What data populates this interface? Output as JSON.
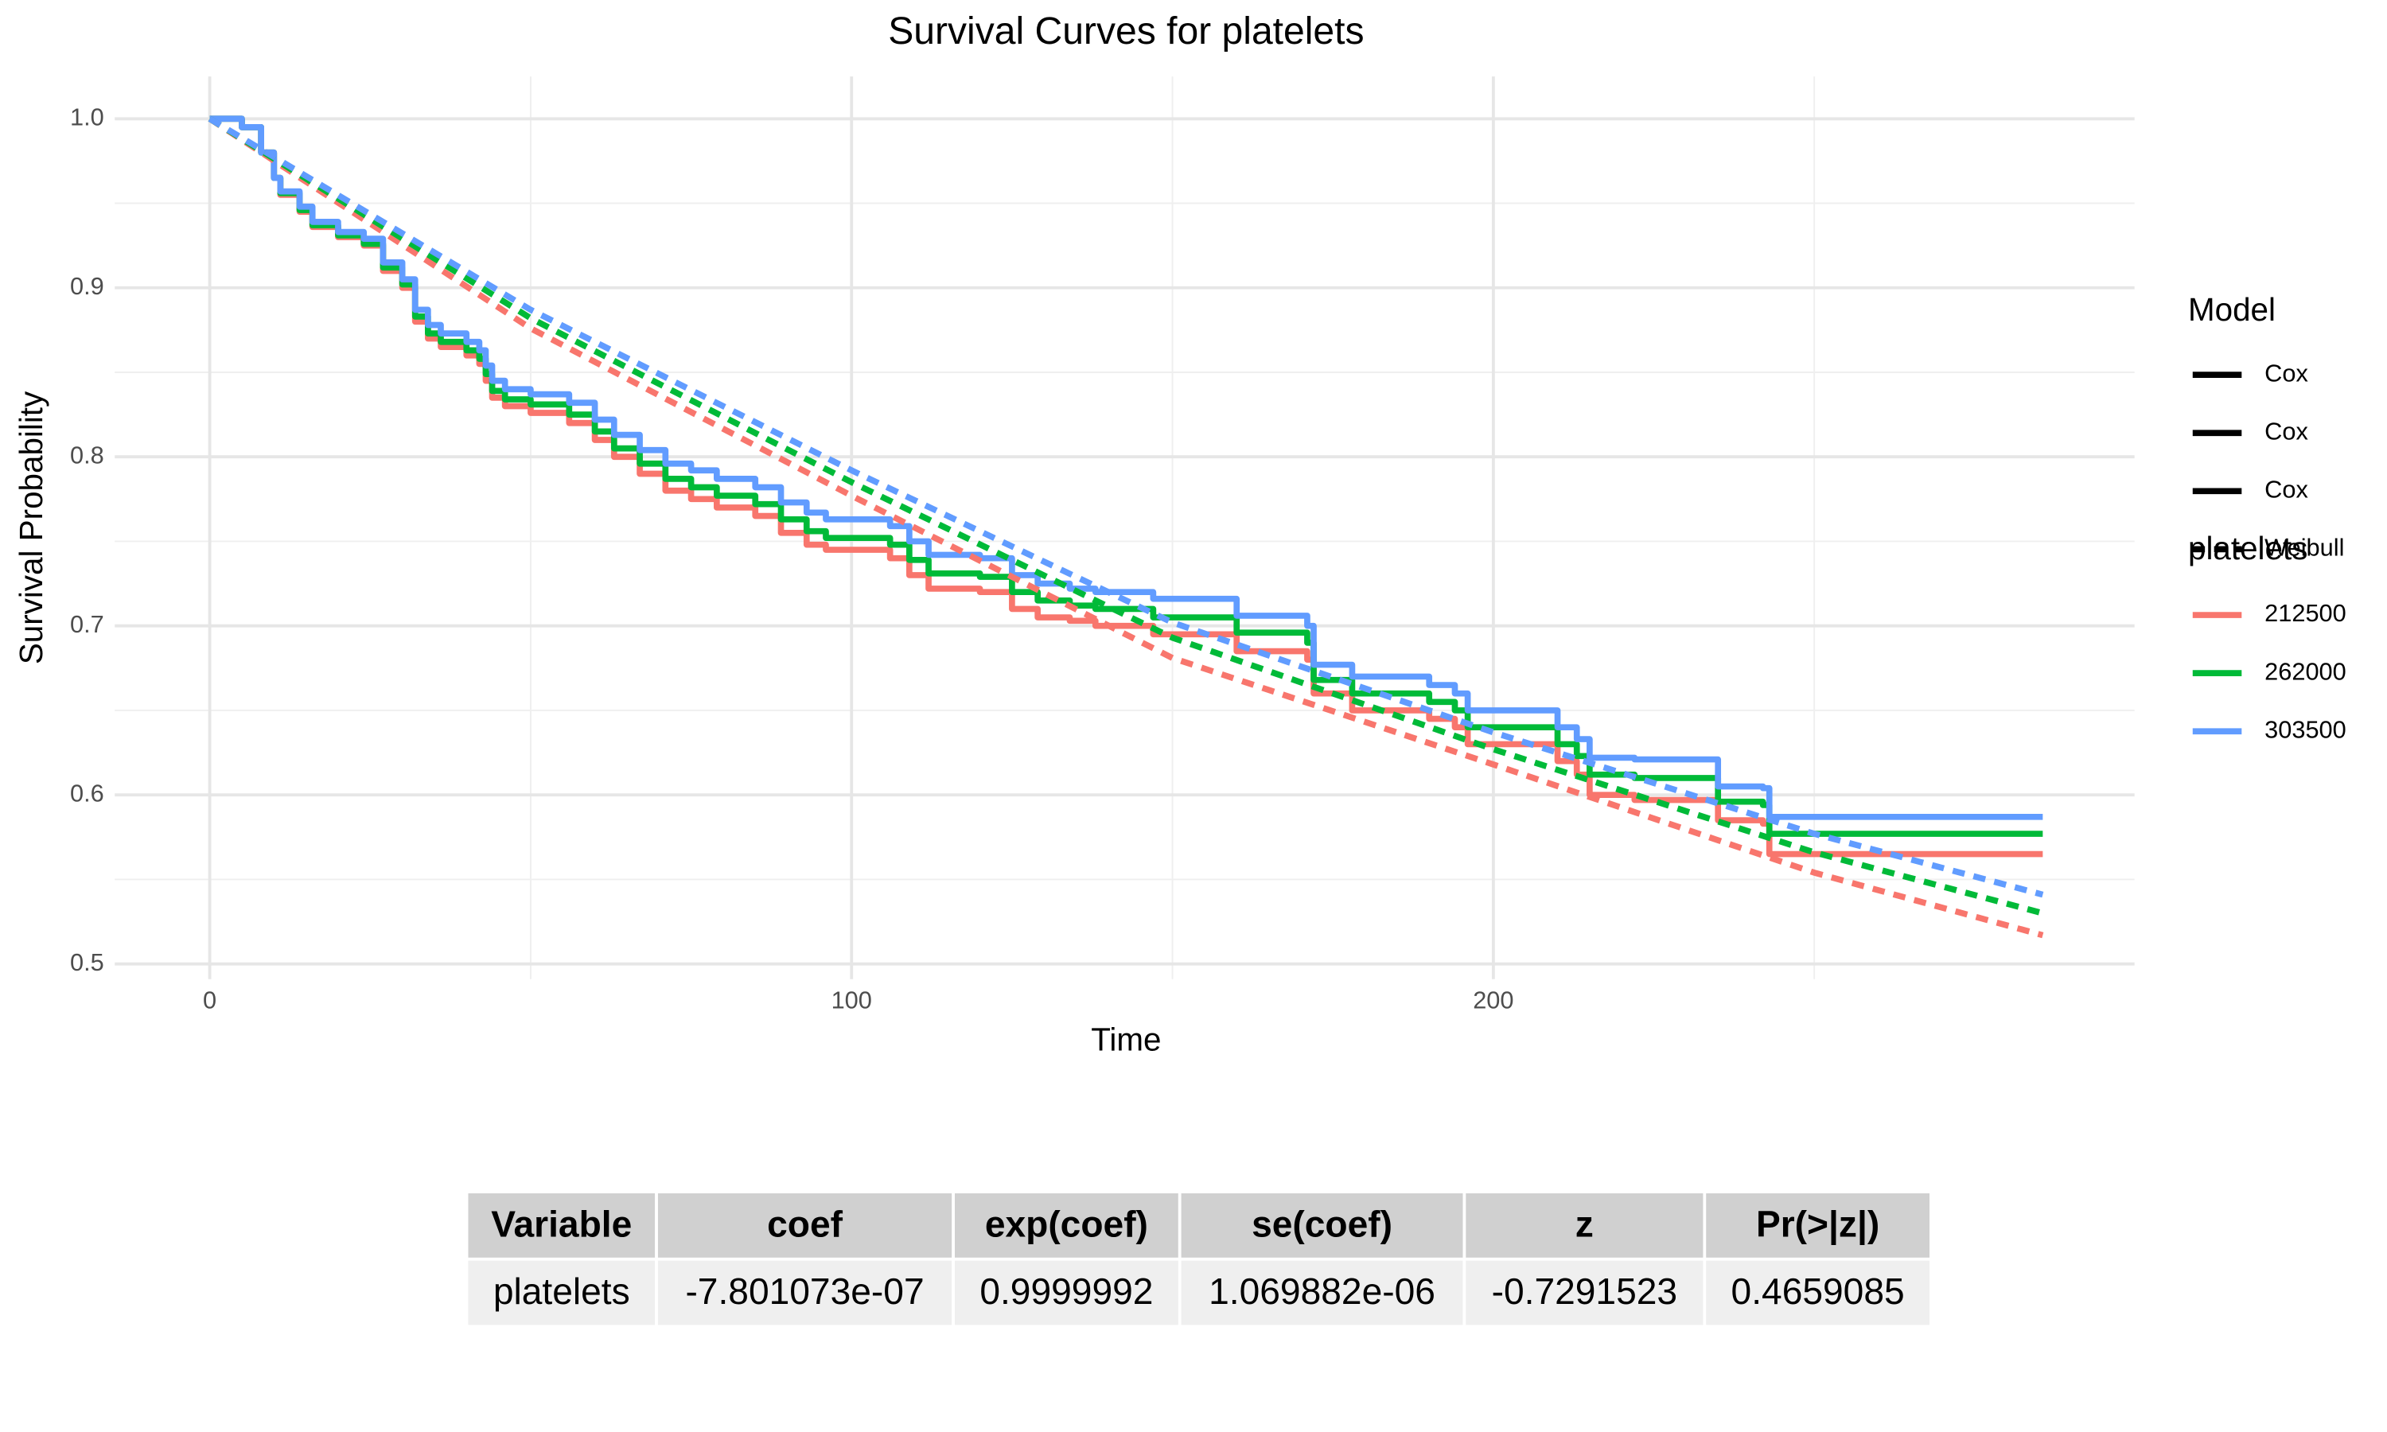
{
  "chart_data": {
    "type": "line",
    "title": "Survival Curves for platelets",
    "x_label": "Time",
    "y_label": "Survival Probability",
    "xlim": [
      -14.8,
      299.9
    ],
    "ylim": [
      0.491,
      1.025
    ],
    "xticks": [
      0,
      100,
      200
    ],
    "yticks": [
      0.5,
      0.6,
      0.7,
      0.8,
      0.9,
      {
        "value": 1.0,
        "label": "1.0"
      }
    ],
    "x_minor_ticks": [
      50,
      150,
      250
    ],
    "y_minor_ticks": [
      0.55,
      0.65,
      0.75,
      0.85,
      0.95
    ],
    "grid": true,
    "linetype_legend_title": "Model",
    "color_legend_title": "platelets",
    "series": [
      {
        "name": "212500",
        "model": "Cox",
        "color": "#F8766D",
        "step": true,
        "x": [
          0,
          5,
          8,
          10,
          11,
          14,
          16,
          20,
          24,
          27,
          30,
          32,
          34,
          36,
          40,
          42,
          43,
          44,
          46,
          50,
          56,
          60,
          63,
          67,
          71,
          75,
          79,
          85,
          89,
          93,
          96,
          106,
          109,
          112,
          120,
          125,
          129,
          134,
          138,
          147,
          160,
          171,
          172,
          178,
          190,
          194,
          196,
          210,
          213,
          215,
          222,
          235,
          242,
          243,
          285.6
        ],
        "values": [
          1,
          0.995,
          0.98,
          0.965,
          0.955,
          0.945,
          0.936,
          0.93,
          0.925,
          0.91,
          0.9,
          0.88,
          0.87,
          0.865,
          0.86,
          0.855,
          0.845,
          0.835,
          0.83,
          0.826,
          0.82,
          0.81,
          0.8,
          0.79,
          0.78,
          0.775,
          0.77,
          0.765,
          0.755,
          0.748,
          0.745,
          0.74,
          0.73,
          0.722,
          0.72,
          0.71,
          0.705,
          0.703,
          0.7,
          0.695,
          0.685,
          0.68,
          0.66,
          0.65,
          0.645,
          0.64,
          0.63,
          0.62,
          0.612,
          0.6,
          0.597,
          0.585,
          0.583,
          0.565,
          0.565
        ]
      },
      {
        "name": "262000",
        "model": "Cox",
        "color": "#00BA38",
        "step": true,
        "x": [
          0,
          5,
          8,
          10,
          11,
          14,
          16,
          20,
          24,
          27,
          30,
          32,
          34,
          36,
          40,
          42,
          43,
          44,
          46,
          50,
          56,
          60,
          63,
          67,
          71,
          75,
          79,
          85,
          89,
          93,
          96,
          106,
          109,
          112,
          120,
          125,
          129,
          134,
          138,
          147,
          160,
          171,
          172,
          178,
          190,
          194,
          196,
          210,
          213,
          215,
          222,
          235,
          242,
          243,
          285.6
        ],
        "values": [
          1,
          0.995,
          0.98,
          0.965,
          0.956,
          0.946,
          0.937,
          0.931,
          0.926,
          0.912,
          0.902,
          0.883,
          0.873,
          0.868,
          0.863,
          0.858,
          0.849,
          0.839,
          0.834,
          0.831,
          0.825,
          0.815,
          0.805,
          0.796,
          0.787,
          0.782,
          0.777,
          0.772,
          0.763,
          0.756,
          0.752,
          0.748,
          0.739,
          0.731,
          0.729,
          0.72,
          0.715,
          0.712,
          0.71,
          0.705,
          0.696,
          0.69,
          0.668,
          0.66,
          0.655,
          0.65,
          0.64,
          0.63,
          0.623,
          0.612,
          0.61,
          0.596,
          0.594,
          0.577,
          0.577
        ]
      },
      {
        "name": "303500",
        "model": "Cox",
        "color": "#619CFF",
        "step": true,
        "x": [
          0,
          5,
          8,
          10,
          11,
          14,
          16,
          20,
          24,
          27,
          30,
          32,
          34,
          36,
          40,
          42,
          43,
          44,
          46,
          50,
          56,
          60,
          63,
          67,
          71,
          75,
          79,
          85,
          89,
          93,
          96,
          106,
          109,
          112,
          120,
          125,
          129,
          134,
          138,
          147,
          160,
          171,
          172,
          178,
          190,
          194,
          196,
          210,
          213,
          215,
          222,
          235,
          242,
          243,
          285.6
        ],
        "values": [
          1,
          0.995,
          0.98,
          0.965,
          0.957,
          0.948,
          0.939,
          0.933,
          0.929,
          0.915,
          0.905,
          0.887,
          0.878,
          0.873,
          0.868,
          0.863,
          0.854,
          0.845,
          0.84,
          0.837,
          0.832,
          0.822,
          0.813,
          0.804,
          0.796,
          0.792,
          0.787,
          0.782,
          0.773,
          0.767,
          0.763,
          0.759,
          0.75,
          0.742,
          0.74,
          0.73,
          0.725,
          0.722,
          0.72,
          0.716,
          0.706,
          0.7,
          0.677,
          0.67,
          0.665,
          0.66,
          0.65,
          0.64,
          0.633,
          0.622,
          0.621,
          0.605,
          0.604,
          0.587,
          0.587
        ]
      },
      {
        "model": "Weibull",
        "color": "#F8766D",
        "step": false,
        "x": [
          0,
          50,
          100,
          150,
          200,
          250,
          285.6
        ],
        "values": [
          1,
          0.876,
          0.777,
          0.681,
          0.618,
          0.554,
          0.517
        ]
      },
      {
        "color": "#00BA38",
        "step": false,
        "x": [
          0,
          50,
          100,
          150,
          200,
          250,
          285.6
        ],
        "values": [
          1,
          0.882,
          0.785,
          0.693,
          0.627,
          0.566,
          0.53
        ]
      },
      {
        "color": "#619CFF",
        "step": false,
        "x": [
          0,
          50,
          100,
          150,
          200,
          250,
          285.6
        ],
        "values": [
          1,
          0.887,
          0.792,
          0.702,
          0.637,
          0.577,
          0.541
        ]
      }
    ]
  },
  "table": {
    "columns": [
      "Variable",
      "coef",
      "exp(coef)",
      "se(coef)",
      "z",
      "Pr(>|z|)"
    ],
    "rows": [
      [
        "platelets",
        "-7.801073e-07",
        "0.9999992",
        "1.069882e-06",
        "-0.7291523",
        "0.4659085"
      ]
    ]
  }
}
